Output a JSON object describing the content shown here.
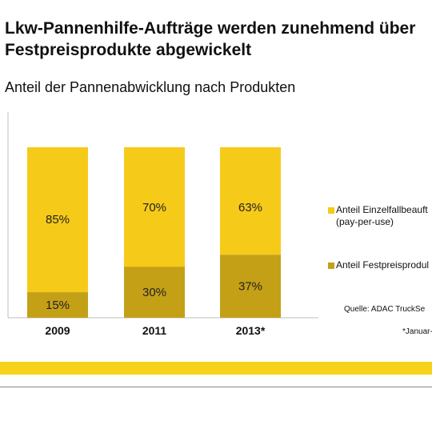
{
  "title": "Lkw-Pannenhilfe-Aufträge werden zunehmend über Festpreisprodukte abgewickelt",
  "subtitle": "Anteil der Pannenabwicklung nach Produkten",
  "legend": [
    {
      "label": "Anteil Einzelfallbeauft",
      "label2": "(pay-per-use)",
      "color": "#f6ca18"
    },
    {
      "label": "Anteil Festpreisprodul",
      "label2": "",
      "color": "#c4a017"
    }
  ],
  "source": "Quelle:  ADAC TruckSe",
  "footnote": "*Januar-",
  "colors": {
    "band": "#f6d31a",
    "top": "#f6ca18",
    "bottom": "#c4a017"
  },
  "chart_data": {
    "type": "bar",
    "stacked": true,
    "categories": [
      "2009",
      "2011",
      "2013*"
    ],
    "series": [
      {
        "name": "Anteil Festpreisprodul",
        "values": [
          15,
          30,
          37
        ],
        "labels": [
          "15%",
          "30%",
          "37%"
        ]
      },
      {
        "name": "Anteil Einzelfallbeauft (pay-per-use)",
        "values": [
          85,
          70,
          63
        ],
        "labels": [
          "85%",
          "70%",
          "63%"
        ]
      }
    ],
    "ylim": [
      0,
      100
    ],
    "unit": "%"
  }
}
